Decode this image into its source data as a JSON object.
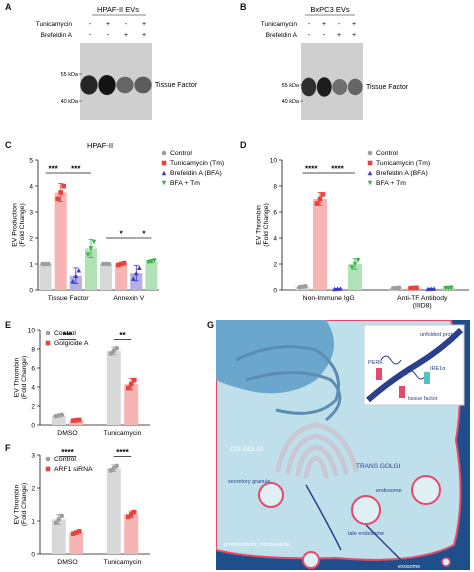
{
  "panels": {
    "A": "A",
    "B": "B",
    "C": "C",
    "D": "D",
    "E": "E",
    "F": "F",
    "G": "G"
  },
  "blots": [
    {
      "id": "A",
      "title": "HPAF-II EVs",
      "rows": [
        {
          "label": "Tunicamycin",
          "signs": [
            "-",
            "+",
            "-",
            "+"
          ]
        },
        {
          "label": "Brefeldin A",
          "signs": [
            "-",
            "-",
            "+",
            "+"
          ]
        }
      ],
      "markers": [
        "55 kDa",
        "40 kDa"
      ],
      "band_label": "Tissue Factor",
      "band_intensity": [
        0.9,
        1.0,
        0.55,
        0.6
      ]
    },
    {
      "id": "B",
      "title": "BxPC3 EVs",
      "rows": [
        {
          "label": "Tunicamycin",
          "signs": [
            "-",
            "+",
            "-",
            "+"
          ]
        },
        {
          "label": "Brefeldin A",
          "signs": [
            "-",
            "-",
            "+",
            "+"
          ]
        }
      ],
      "markers": [
        "55 kDa",
        "40 kDa"
      ],
      "band_label": "Tissue Factor",
      "band_intensity": [
        0.85,
        0.95,
        0.5,
        0.55
      ]
    }
  ],
  "chart_data": [
    {
      "id": "C",
      "type": "bar",
      "title": "HPAF-II",
      "ylabel": "EV Production (Fold Change)",
      "ylim": [
        0,
        5
      ],
      "yticks": [
        "0",
        "1",
        "2",
        "3",
        "4",
        "5"
      ],
      "categories": [
        "Tissue Factor",
        "Annexin V"
      ],
      "series": [
        {
          "name": "Control",
          "color": "#9e9e9e",
          "marker": "circle",
          "values": [
            1.0,
            1.0
          ],
          "errors": [
            0.0,
            0.0
          ]
        },
        {
          "name": "Tunicamycin (Tm)",
          "color": "#e8433e",
          "marker": "square",
          "values": [
            3.75,
            1.0
          ],
          "errors": [
            0.35,
            0.05
          ]
        },
        {
          "name": "Brefeldin A (BFA)",
          "color": "#3b3bc4",
          "marker": "triangle",
          "values": [
            0.55,
            0.65
          ],
          "errors": [
            0.3,
            0.3
          ]
        },
        {
          "name": "BFA + Tm",
          "color": "#3bb34a",
          "marker": "triangle-down",
          "values": [
            1.6,
            1.1
          ],
          "errors": [
            0.35,
            0.05
          ]
        }
      ],
      "significance": [
        {
          "label": "***",
          "cat": 0,
          "from": 0,
          "to": 1,
          "y": 4.5
        },
        {
          "label": "***",
          "cat": 0,
          "from": 1,
          "to": 3,
          "y": 4.5
        },
        {
          "label": "*",
          "cat": 1,
          "from": 0,
          "to": 2,
          "y": 2.0
        },
        {
          "label": "*",
          "cat": 1,
          "from": 2,
          "to": 3,
          "y": 2.0
        }
      ]
    },
    {
      "id": "D",
      "type": "bar",
      "title": "",
      "ylabel": "EV Thrombin (Fold Change)",
      "ylim": [
        0,
        10
      ],
      "yticks": [
        "0",
        "2",
        "4",
        "6",
        "8",
        "10"
      ],
      "categories": [
        "Non-Immune IgG",
        "Anti-TF Antibody (IIID8)"
      ],
      "series": [
        {
          "name": "Control",
          "color": "#9e9e9e",
          "marker": "circle",
          "values": [
            0.25,
            0.15
          ],
          "errors": [
            0.05,
            0.03
          ]
        },
        {
          "name": "Tunicamycin (Tm)",
          "color": "#e8433e",
          "marker": "square",
          "values": [
            7.0,
            0.15
          ],
          "errors": [
            0.5,
            0.03
          ]
        },
        {
          "name": "Brefeldin A (BFA)",
          "color": "#3b3bc4",
          "marker": "triangle",
          "values": [
            0.1,
            0.1
          ],
          "errors": [
            0.03,
            0.02
          ]
        },
        {
          "name": "BFA + Tm",
          "color": "#3bb34a",
          "marker": "triangle-down",
          "values": [
            2.0,
            0.15
          ],
          "errors": [
            0.4,
            0.03
          ]
        }
      ],
      "significance": [
        {
          "label": "****",
          "cat": 0,
          "from": 0,
          "to": 1,
          "y": 9.0
        },
        {
          "label": "****",
          "cat": 0,
          "from": 1,
          "to": 3,
          "y": 9.0
        }
      ]
    },
    {
      "id": "E",
      "type": "bar",
      "title": "",
      "ylabel": "EV Thrombin (Fold Change)",
      "ylim": [
        0,
        10
      ],
      "yticks": [
        "0",
        "2",
        "4",
        "6",
        "8",
        "10"
      ],
      "categories": [
        "DMSO",
        "Tunicamycin"
      ],
      "series": [
        {
          "name": "Control",
          "color": "#9e9e9e",
          "marker": "circle",
          "values": [
            1.0,
            7.8
          ],
          "errors": [
            0.1,
            0.4
          ]
        },
        {
          "name": "Golgicide A",
          "color": "#e8433e",
          "marker": "square",
          "values": [
            0.5,
            4.3
          ],
          "errors": [
            0.05,
            0.6
          ]
        }
      ],
      "significance": [
        {
          "label": "***",
          "cat": -1,
          "from": 0,
          "to": 1,
          "y": 9.0
        },
        {
          "label": "**",
          "cat": 1,
          "from": 0,
          "to": 1,
          "y": 9.0
        }
      ]
    },
    {
      "id": "F",
      "type": "bar",
      "title": "",
      "ylabel": "EV Thrombin (Fold Change)",
      "ylim": [
        0,
        3
      ],
      "yticks": [
        "0",
        "1",
        "2",
        "3"
      ],
      "categories": [
        "DMSO",
        "Tunicamycin"
      ],
      "series": [
        {
          "name": "Control",
          "color": "#9e9e9e",
          "marker": "circle",
          "values": [
            1.05,
            2.6
          ],
          "errors": [
            0.15,
            0.1
          ]
        },
        {
          "name": "ARF1 siRNA",
          "color": "#e8433e",
          "marker": "square",
          "values": [
            0.65,
            1.2
          ],
          "errors": [
            0.05,
            0.1
          ]
        }
      ],
      "significance": [
        {
          "label": "****",
          "cat": -1,
          "from": 0,
          "to": 1,
          "y": 2.95
        },
        {
          "label": "****",
          "cat": 1,
          "from": 0,
          "to": 1,
          "y": 2.95
        }
      ]
    }
  ],
  "diagram": {
    "labels": {
      "unfolded": "unfolded protein",
      "perk": "PERK",
      "ire1a": "IRE1α",
      "tissue_factor": "tissue factor",
      "cis_golgi": "CIS GOLGI",
      "trans_golgi": "TRANS GOLGI",
      "secretory": "secretory granule",
      "endosome": "endosome",
      "late_endosome": "late endosome",
      "prothrombotic": "prothrombotic microvesicle",
      "exosome": "exosome"
    },
    "colors": {
      "cell": "#bfe0ea",
      "nucleus": "#6ba7cc",
      "background": "#1f4f8a",
      "membrane": "#e54a6c"
    }
  }
}
